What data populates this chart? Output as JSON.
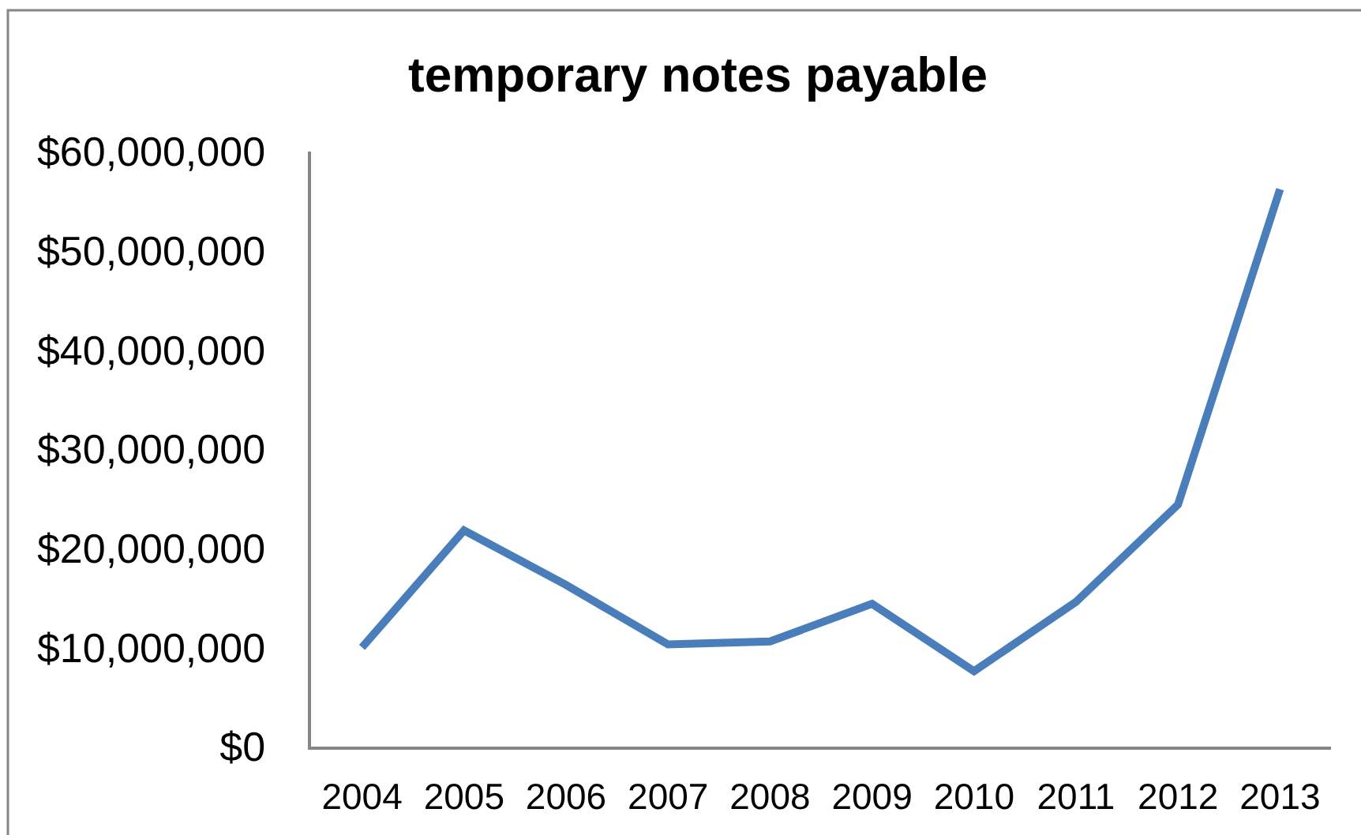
{
  "chart_data": {
    "type": "line",
    "title": "temporary notes payable",
    "categories": [
      "2004",
      "2005",
      "2006",
      "2007",
      "2008",
      "2009",
      "2010",
      "2011",
      "2012",
      "2013"
    ],
    "series": [
      {
        "color": "#4a7ebb",
        "values": [
          10000000,
          21800000,
          16300000,
          10300000,
          10600000,
          14400000,
          7600000,
          14600000,
          24400000,
          56200000
        ]
      }
    ],
    "ylim": [
      0,
      60000000
    ],
    "yticks": [
      {
        "value": 0,
        "label": "$0"
      },
      {
        "value": 10000000,
        "label": "$10,000,000"
      },
      {
        "value": 20000000,
        "label": "$20,000,000"
      },
      {
        "value": 30000000,
        "label": "$30,000,000"
      },
      {
        "value": 40000000,
        "label": "$40,000,000"
      },
      {
        "value": 50000000,
        "label": "$50,000,000"
      },
      {
        "value": 60000000,
        "label": "$60,000,000"
      }
    ],
    "marker": "none",
    "line_style": "solid"
  }
}
